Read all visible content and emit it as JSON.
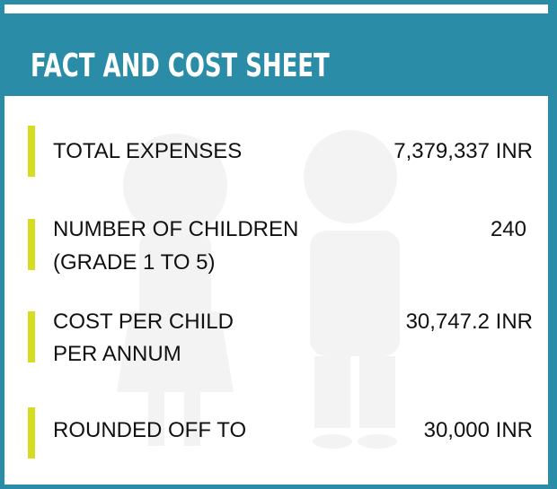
{
  "title": "FACT AND COST SHEET",
  "colors": {
    "frame": "#2a8ca6",
    "accent_bar": "#d4dd1f",
    "text": "#111111"
  },
  "rows": [
    {
      "label_lines": [
        "TOTAL EXPENSES"
      ],
      "value": "7,379,337 INR"
    },
    {
      "label_lines": [
        "NUMBER OF CHILDREN",
        "(GRADE 1 TO 5)"
      ],
      "value": "240"
    },
    {
      "label_lines": [
        "COST PER CHILD",
        "PER ANNUM"
      ],
      "value": "30,747.2 INR"
    },
    {
      "label_lines": [
        "ROUNDED OFF TO"
      ],
      "value": "30,000 INR"
    }
  ]
}
